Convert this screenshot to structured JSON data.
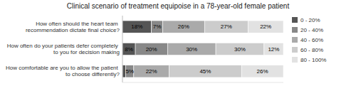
{
  "chart_data": {
    "type": "bar",
    "orientation": "horizontal",
    "stacked": true,
    "data_labels": true,
    "tick_labels": "y",
    "title": "Clinical scenario of treatment equipoise in a 78-year-old female patient",
    "categories": [
      "How often should the heart team recommendation dictate final choice?",
      "How often do your patients defer completely to you for decision making",
      "How comfortable are you to allow the patient to choose differently?"
    ],
    "xlim": [
      0,
      100
    ],
    "legend": "right",
    "series": [
      {
        "name": "0 - 20%",
        "color": "#555555",
        "values": [
          18,
          8,
          2
        ],
        "value_labels": [
          "18%",
          "8%",
          null
        ]
      },
      {
        "name": "20 - 40%",
        "color": "#888888",
        "values": [
          7,
          20,
          5
        ],
        "value_labels": [
          "7%",
          "20%",
          "5%"
        ]
      },
      {
        "name": "40 - 60%",
        "color": "#aaaaaa",
        "values": [
          26,
          30,
          22
        ],
        "value_labels": [
          "26%",
          "30%",
          "22%"
        ]
      },
      {
        "name": "60 - 80%",
        "color": "#cccccc",
        "values": [
          27,
          30,
          45
        ],
        "value_labels": [
          "27%",
          "30%",
          "45%"
        ]
      },
      {
        "name": "80 - 100%",
        "color": "#e2e2e2",
        "values": [
          22,
          12,
          26
        ],
        "value_labels": [
          "22%",
          "12%",
          "26%"
        ]
      }
    ]
  }
}
